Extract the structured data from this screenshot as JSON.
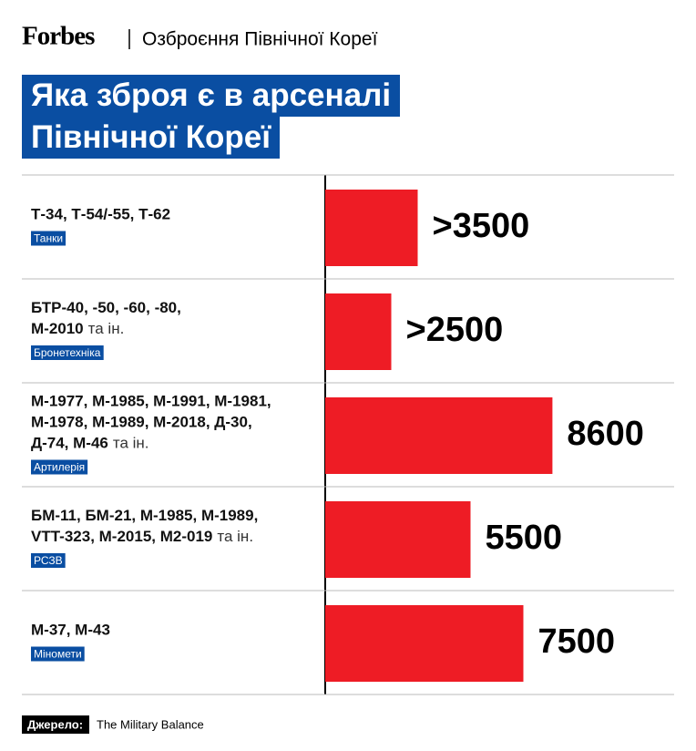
{
  "header": {
    "brand": "Forbes",
    "section": "Озброєння Північної Кореї"
  },
  "chart_data": {
    "type": "bar",
    "orientation": "horizontal",
    "title_lines": [
      "Яка зброя є в арсеналі",
      "Північної Кореї"
    ],
    "categories": [
      "Танки",
      "Бронетехніка",
      "Артилерія",
      "РСЗВ",
      "Міномети"
    ],
    "descriptions": [
      [
        [
          "Т-34, Т-54/-55, Т-62"
        ]
      ],
      [
        [
          "БТР-40, -50, -60, -80,"
        ],
        [
          "М-2010",
          "та ін."
        ]
      ],
      [
        [
          "М-1977, М-1985, М-1991, М-1981,"
        ],
        [
          "М-1978, М-1989, М-2018, Д-30,"
        ],
        [
          "Д-74, М-46",
          "та ін."
        ]
      ],
      [
        [
          "БМ-11, БМ-21, М-1985, М-1989,"
        ],
        [
          "VTT-323, M-2015, M2-019",
          "та ін."
        ]
      ],
      [
        [
          "М-37, М-43"
        ]
      ]
    ],
    "values": [
      3500,
      2500,
      8600,
      5500,
      7500
    ],
    "value_labels": [
      ">3500",
      ">2500",
      "8600",
      "5500",
      "7500"
    ],
    "color": "#ee1c25"
  },
  "source": {
    "label": "Джерело:",
    "text": "The Military Balance"
  }
}
